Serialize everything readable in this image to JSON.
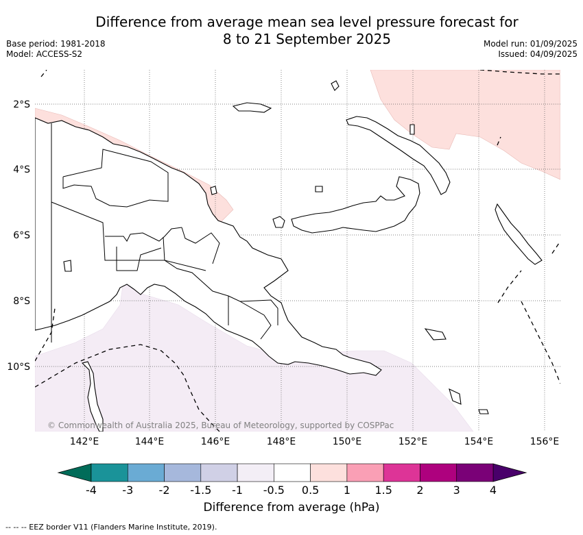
{
  "title": {
    "line1": "Difference from average mean sea level pressure forecast for",
    "line2": "8 to 21 September 2025"
  },
  "meta_left": {
    "base_period": "Base period: 1981-2018",
    "model": "Model: ACCESS-S2"
  },
  "meta_right": {
    "model_run": "Model run: 01/09/2025",
    "issued": "Issued: 04/09/2025"
  },
  "map": {
    "lat_labels": [
      "2°S",
      "4°S",
      "6°S",
      "8°S",
      "10°S"
    ],
    "lon_labels": [
      "142°E",
      "144°E",
      "146°E",
      "148°E",
      "150°E",
      "152°E",
      "154°E",
      "156°E"
    ],
    "copyright": "© Commonwealth of Australia 2025, Bureau of Meteorology, supported by COSPPac",
    "colors": {
      "positive_0_5_to_1": "#fde0dd",
      "negative_1_to_0_5": "#f4ecf5",
      "land_fill": "#ffffff"
    }
  },
  "colorbar": {
    "title": "Difference from average (hPa)",
    "ticks": [
      "-4",
      "-3",
      "-2",
      "-1.5",
      "-1",
      "-0.5",
      "0.5",
      "1",
      "1.5",
      "2",
      "3",
      "4"
    ],
    "colors": [
      "#1a9399",
      "#6aabd4",
      "#a6b8dc",
      "#d0d0e6",
      "#f3eef6",
      "#ffffff",
      "#fde0dd",
      "#fa9fb5",
      "#dd3497",
      "#ae017e",
      "#7a0177"
    ],
    "extend_low_color": "#016c59",
    "extend_high_color": "#49006a"
  },
  "footnote": "--  --  -- EEZ border V11 (Flanders Marine Institute, 2019)."
}
